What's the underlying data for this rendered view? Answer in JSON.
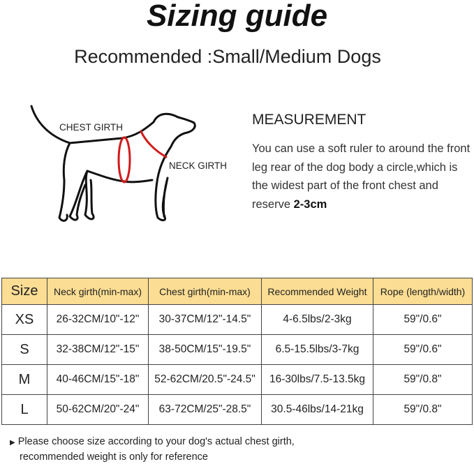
{
  "title": "Sizing guide",
  "subtitle": "Recommended :Small/Medium Dogs",
  "diagram": {
    "chest_label": "CHEST GIRTH",
    "neck_label": "NECK GIRTH",
    "outline_color": "#111111",
    "girth_color": "#d11a1a"
  },
  "measurement": {
    "heading": "MEASUREMENT",
    "text": "You can use a soft ruler to around the front leg rear of the dog body a circle,which is the widest part of the front chest and reserve",
    "highlight": "2-3cm"
  },
  "table": {
    "header_color": "#fbdd93",
    "headers": [
      "Size",
      "Neck girth(min-max)",
      "Chest girth(min-max)",
      "Recommended  Weight",
      "Rope (length/width)"
    ],
    "rows": [
      [
        "XS",
        "26-32CM/10\"-12\"",
        "30-37CM/12\"-14.5\"",
        "4-6.5lbs/2-3kg",
        "59\"/0.6\""
      ],
      [
        "S",
        "32-38CM/12\"-15\"",
        "38-50CM/15\"-19.5\"",
        "6.5-15.5lbs/3-7kg",
        "59\"/0.6\""
      ],
      [
        "M",
        "40-46CM/15\"-18\"",
        "52-62CM/20.5\"-24.5\"",
        "16-30lbs/7.5-13.5kg",
        "59\"/0.8\""
      ],
      [
        "L",
        "50-62CM/20\"-24\"",
        "63-72CM/25\"-28.5\"",
        "30.5-46lbs/14-21kg",
        "59\"/0.8\""
      ]
    ]
  },
  "note": {
    "icon": "triangle-right-icon",
    "line1": "Please choose size according to your dog's actual chest girth,",
    "line2": "recommended weight is only for reference"
  }
}
